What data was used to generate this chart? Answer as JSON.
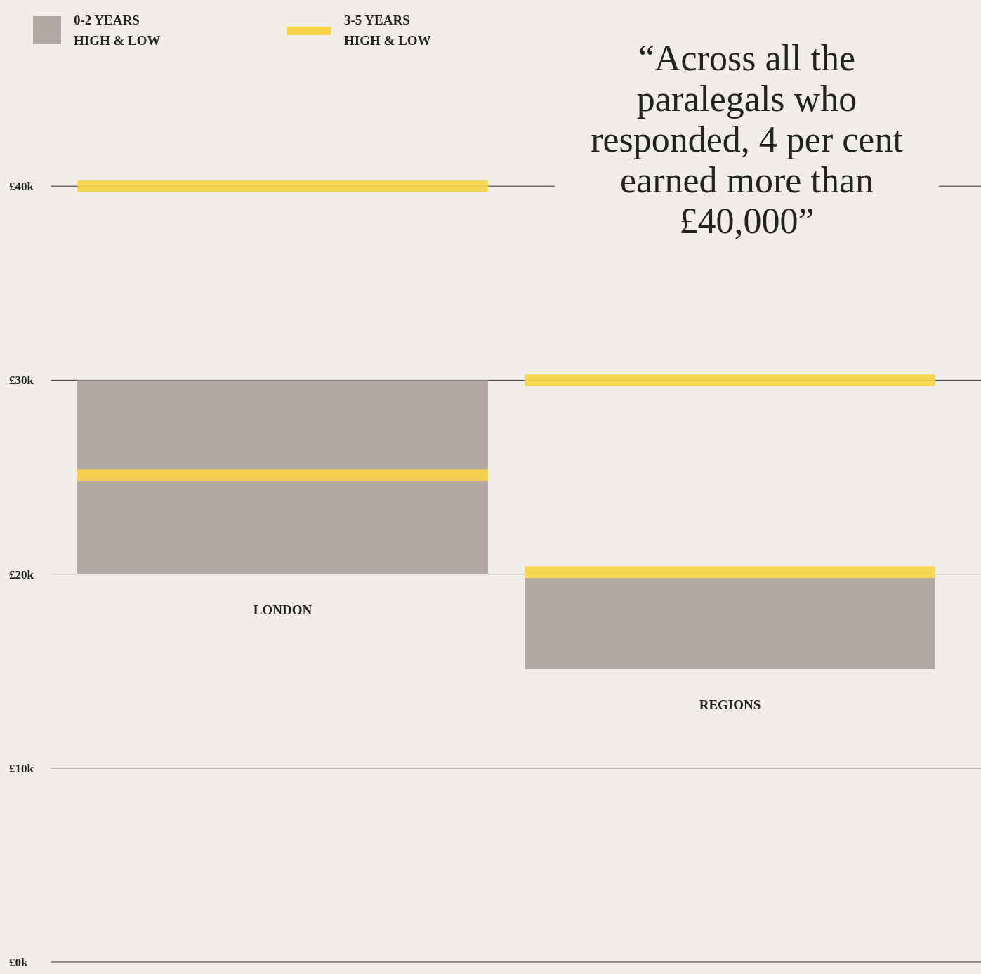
{
  "chart_data": {
    "type": "bar",
    "categories": [
      "LONDON",
      "REGIONS"
    ],
    "series": [
      {
        "name": "0-2 YEARS HIGH & LOW",
        "color": "#b3a8a4",
        "values": [
          10,
          4.7
        ],
        "base": [
          20,
          15.1
        ]
      },
      {
        "name": "3-5 YEARS HIGH & LOW",
        "color": "#f9d448",
        "values": [
          0.6,
          0.6
        ],
        "base": [
          39.7,
          29.7
        ]
      },
      {
        "color": "#f9d448",
        "values": [
          0.6,
          0.6
        ],
        "base": [
          24.8,
          19.8
        ]
      }
    ],
    "ylim": [
      0,
      49.6
    ],
    "yticks": [
      {
        "value": 0,
        "label": "£0k"
      },
      {
        "value": 10,
        "label": "£10k"
      },
      {
        "value": 20,
        "label": "£20k"
      },
      {
        "value": 30,
        "label": "£30k"
      },
      {
        "value": 40,
        "label": "£40k"
      }
    ],
    "grid": "y",
    "legend": "top left",
    "annotations": [
      "“Across all the paralegals who responded, 4 per cent earned more than £40,000”"
    ]
  }
}
